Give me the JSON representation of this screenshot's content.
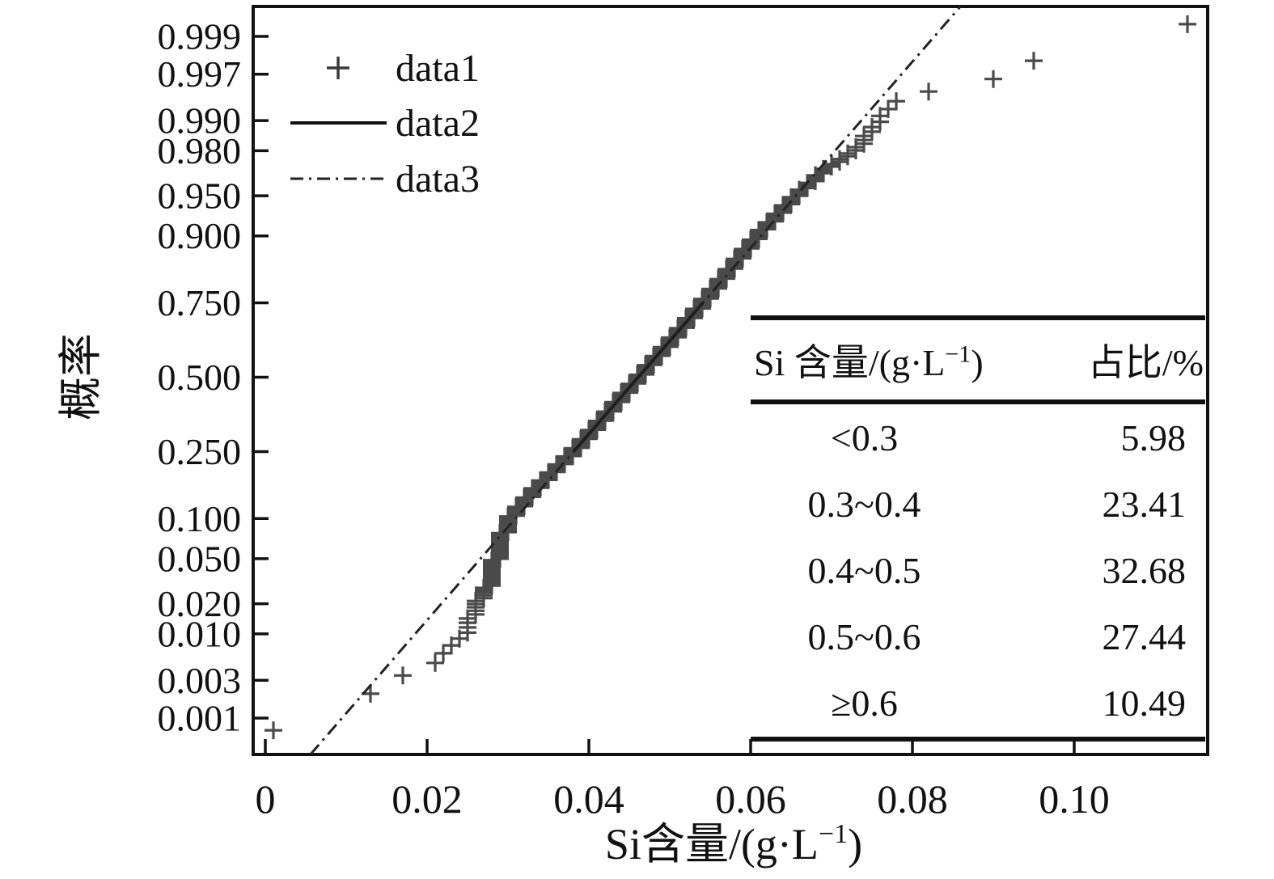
{
  "figure": {
    "background": "#ffffff",
    "ink_color": "#111111",
    "marker_color": "#222222"
  },
  "y_axis": {
    "label": "概率",
    "tick_labels": [
      "0.999",
      "0.997",
      "0.990",
      "0.980",
      "0.950",
      "0.900",
      "0.750",
      "0.500",
      "0.250",
      "0.100",
      "0.050",
      "0.020",
      "0.010",
      "0.003",
      "0.001"
    ]
  },
  "x_axis": {
    "label_base": "Si含量/(g·L",
    "label_sup": "−1",
    "label_close": ")",
    "tick_labels": [
      "0",
      "0.02",
      "0.04",
      "0.06",
      "0.08",
      "0.10"
    ]
  },
  "legend": {
    "position": "top-left-inside",
    "entries": [
      {
        "label": "data1",
        "style": "plus-marker"
      },
      {
        "label": "data2",
        "style": "solid-line"
      },
      {
        "label": "data3",
        "style": "dash-dot-line"
      }
    ]
  },
  "inset_table": {
    "col1_header": {
      "base": "Si 含量/(g·L",
      "sup": "−1",
      "close": ")"
    },
    "col2_header": "占比/%",
    "rows": [
      {
        "range": "<0.3",
        "pct": "5.98"
      },
      {
        "range": "0.3~0.4",
        "pct": "23.41"
      },
      {
        "range": "0.4~0.5",
        "pct": "32.68"
      },
      {
        "range": "0.5~0.6",
        "pct": "27.44"
      },
      {
        "range": "≥0.6",
        "pct": "10.49"
      }
    ]
  },
  "chart_data": {
    "type": "scatter",
    "subtype": "normal-probability-plot",
    "title": "",
    "xlabel": "Si含量/(g·L−1)",
    "ylabel": "概率",
    "x_ticks": [
      0,
      0.02,
      0.04,
      0.06,
      0.08,
      0.1
    ],
    "xlim": [
      -0.0015,
      0.1165
    ],
    "y_scale": "probit",
    "probability_ticks": [
      0.999,
      0.997,
      0.99,
      0.98,
      0.95,
      0.9,
      0.75,
      0.5,
      0.25,
      0.1,
      0.05,
      0.02,
      0.01,
      0.003,
      0.001
    ],
    "ylim_z": [
      -3.42,
      3.362
    ],
    "grid": false,
    "legend_position": "top-left",
    "series": [
      {
        "name": "data1",
        "style": "plus-markers",
        "n_points": 730,
        "x_resolution": 0.001,
        "quantile_anchors_p_x": [
          [
            0.000685,
            0.001
          ],
          [
            0.00205,
            0.0133
          ],
          [
            0.003,
            0.016
          ],
          [
            0.0045,
            0.0205
          ],
          [
            0.0066,
            0.0229
          ],
          [
            0.0095,
            0.0245
          ],
          [
            0.014,
            0.0253
          ],
          [
            0.02,
            0.0261
          ],
          [
            0.03,
            0.0277
          ],
          [
            0.05,
            0.0285
          ],
          [
            0.08,
            0.0295
          ],
          [
            0.1,
            0.0302
          ],
          [
            0.15,
            0.0331
          ],
          [
            0.25,
            0.0381
          ],
          [
            0.35,
            0.0416
          ],
          [
            0.5,
            0.0462
          ],
          [
            0.65,
            0.0508
          ],
          [
            0.75,
            0.0541
          ],
          [
            0.85,
            0.0581
          ],
          [
            0.9,
            0.0608
          ],
          [
            0.95,
            0.0656
          ],
          [
            0.97,
            0.0692
          ],
          [
            0.975,
            0.0712
          ],
          [
            0.98,
            0.0727
          ],
          [
            0.985,
            0.0742
          ],
          [
            0.99,
            0.0757
          ],
          [
            0.9941,
            0.0779
          ],
          [
            0.9952,
            0.082
          ],
          [
            0.9966,
            0.0903
          ],
          [
            0.998,
            0.095
          ],
          [
            0.99931,
            0.1139
          ]
        ]
      },
      {
        "name": "data2",
        "style": "solid-line",
        "endpoints_p_x": [
          [
            0.25,
            0.0381
          ],
          [
            0.75,
            0.0541
          ]
        ]
      },
      {
        "name": "data3",
        "style": "dash-dot-line",
        "mu": 0.0461,
        "sigma": 0.01185
      }
    ]
  }
}
